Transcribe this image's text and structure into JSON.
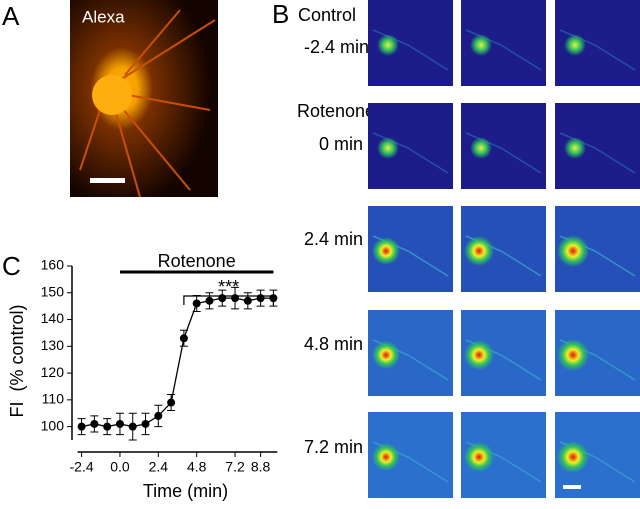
{
  "panels": {
    "a": {
      "label": "A",
      "stain": "Alexa"
    },
    "b": {
      "label": "B",
      "rows": [
        {
          "condition": "Control",
          "time": "-2.4 min"
        },
        {
          "condition": "Rotenone",
          "time": "0 min"
        },
        {
          "time": "2.4 min"
        },
        {
          "time": "4.8 min"
        },
        {
          "time": "7.2 min"
        }
      ]
    },
    "c": {
      "label": "C"
    }
  },
  "chart_data": {
    "type": "line",
    "x_label": "Time (min)",
    "y_label": "FI  (% control)",
    "x": [
      -2.4,
      -1.6,
      -0.8,
      0,
      0.8,
      1.6,
      2.4,
      3.2,
      4.0,
      4.8,
      5.6,
      6.4,
      7.2,
      8.0,
      8.8,
      9.6
    ],
    "series": [
      {
        "color": "#000000",
        "values": [
          100,
          101,
          100,
          101,
          100,
          101,
          104,
          109,
          133,
          146,
          147,
          148,
          148,
          147,
          148,
          148
        ],
        "errors": [
          3,
          3,
          3,
          4,
          5,
          4,
          4,
          3,
          3,
          3,
          3,
          3,
          4,
          3,
          3,
          3
        ]
      }
    ],
    "xlim": [
      -3,
      10.2
    ],
    "ylim": [
      95,
      160
    ],
    "xticks": [
      -2.4,
      {
        "value": 0,
        "label": "0.0"
      },
      2.4,
      4.8,
      7.2,
      8.8
    ],
    "yticks": [
      100,
      110,
      120,
      130,
      140,
      150,
      160
    ],
    "annotations": [
      {
        "text": "Rotenone",
        "x": [
          0,
          9.6
        ]
      },
      {
        "text": "***",
        "x": [
          4.0,
          9.6
        ]
      }
    ]
  }
}
